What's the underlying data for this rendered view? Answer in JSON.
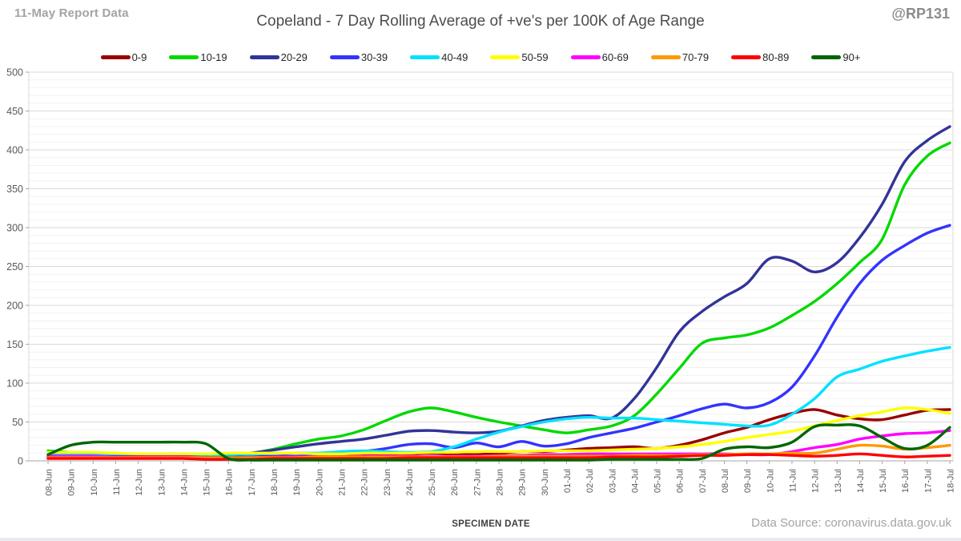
{
  "header": {
    "report_label": "11-May Report Data",
    "title": "Copeland - 7 Day Rolling Average of +ve's per 100K of Age Range",
    "handle": "@RP131"
  },
  "footer": {
    "xlabel": "SPECIMEN DATE",
    "source": "Data Source: coronavirus.data.gov.uk"
  },
  "colors": {
    "grid_major": "#d9d9d9",
    "grid_minor": "#f1f1f1",
    "axis": "#a6a6a6",
    "tick_label": "#595959"
  },
  "chart_data": {
    "type": "line",
    "title": "Copeland - 7 Day Rolling Average of +ve's per 100K of Age Range",
    "xlabel": "SPECIMEN DATE",
    "ylabel": "",
    "ylim": [
      0,
      500
    ],
    "y_major_step": 50,
    "y_minor_step": 10,
    "grid": true,
    "legend_position": "top",
    "line_style": "smooth",
    "categories": [
      "08-Jun",
      "09-Jun",
      "10-Jun",
      "11-Jun",
      "12-Jun",
      "13-Jun",
      "14-Jun",
      "15-Jun",
      "16-Jun",
      "17-Jun",
      "18-Jun",
      "19-Jun",
      "20-Jun",
      "21-Jun",
      "22-Jun",
      "23-Jun",
      "24-Jun",
      "25-Jun",
      "26-Jun",
      "27-Jun",
      "28-Jun",
      "29-Jun",
      "30-Jun",
      "01-Jul",
      "02-Jul",
      "03-Jul",
      "04-Jul",
      "05-Jul",
      "06-Jul",
      "07-Jul",
      "08-Jul",
      "09-Jul",
      "10-Jul",
      "11-Jul",
      "12-Jul",
      "13-Jul",
      "14-Jul",
      "15-Jul",
      "16-Jul",
      "17-Jul",
      "18-Jul"
    ],
    "series": [
      {
        "name": "0-9",
        "color": "#990000",
        "values": [
          4,
          4,
          4,
          4,
          4,
          5,
          5,
          5,
          5,
          5,
          6,
          6,
          6,
          7,
          8,
          8,
          9,
          10,
          9,
          8,
          10,
          12,
          12,
          14,
          16,
          17,
          18,
          16,
          20,
          27,
          36,
          43,
          53,
          61,
          66,
          59,
          54,
          53,
          59,
          65,
          66
        ]
      },
      {
        "name": "10-19",
        "color": "#00d900",
        "values": [
          13,
          11,
          10,
          9,
          8,
          8,
          8,
          7,
          7,
          10,
          15,
          22,
          28,
          32,
          40,
          52,
          63,
          68,
          63,
          56,
          50,
          45,
          40,
          36,
          40,
          45,
          58,
          86,
          119,
          151,
          158,
          162,
          171,
          187,
          205,
          228,
          255,
          285,
          355,
          392,
          409
        ]
      },
      {
        "name": "20-29",
        "color": "#333399",
        "values": [
          5,
          5,
          5,
          6,
          6,
          6,
          7,
          7,
          8,
          10,
          14,
          18,
          22,
          25,
          28,
          33,
          38,
          39,
          37,
          36,
          38,
          45,
          52,
          56,
          58,
          55,
          80,
          120,
          166,
          192,
          211,
          228,
          260,
          257,
          243,
          255,
          287,
          330,
          385,
          412,
          430
        ]
      },
      {
        "name": "30-39",
        "color": "#3333ff",
        "values": [
          5,
          5,
          4,
          4,
          4,
          4,
          5,
          5,
          5,
          5,
          5,
          6,
          7,
          8,
          12,
          16,
          21,
          22,
          17,
          23,
          18,
          25,
          19,
          22,
          30,
          36,
          42,
          50,
          58,
          67,
          73,
          68,
          75,
          95,
          135,
          185,
          228,
          258,
          277,
          293,
          303
        ]
      },
      {
        "name": "40-49",
        "color": "#00e1ff",
        "values": [
          8,
          9,
          9,
          9,
          9,
          9,
          9,
          8,
          8,
          9,
          9,
          10,
          10,
          12,
          13,
          12,
          11,
          12,
          18,
          28,
          37,
          44,
          50,
          54,
          56,
          55,
          55,
          53,
          51,
          49,
          47,
          45,
          46,
          60,
          80,
          108,
          118,
          128,
          135,
          141,
          146
        ]
      },
      {
        "name": "50-59",
        "color": "#ffff00",
        "values": [
          11,
          11,
          11,
          10,
          9,
          9,
          9,
          9,
          10,
          10,
          10,
          10,
          9,
          9,
          10,
          10,
          10,
          11,
          11,
          12,
          12,
          12,
          13,
          13,
          13,
          14,
          15,
          16,
          18,
          21,
          25,
          30,
          34,
          38,
          45,
          52,
          58,
          63,
          68,
          66,
          61
        ]
      },
      {
        "name": "60-69",
        "color": "#ff00ff",
        "values": [
          6,
          6,
          6,
          5,
          5,
          5,
          5,
          4,
          4,
          4,
          5,
          5,
          5,
          5,
          6,
          6,
          6,
          6,
          6,
          6,
          7,
          7,
          8,
          8,
          9,
          9,
          9,
          9,
          9,
          9,
          9,
          8,
          8,
          12,
          17,
          21,
          28,
          32,
          35,
          36,
          39
        ]
      },
      {
        "name": "70-79",
        "color": "#ff9900",
        "values": [
          4,
          4,
          4,
          4,
          4,
          4,
          4,
          4,
          4,
          4,
          4,
          4,
          5,
          5,
          5,
          5,
          5,
          5,
          5,
          5,
          6,
          6,
          6,
          6,
          6,
          6,
          7,
          7,
          7,
          8,
          8,
          9,
          9,
          10,
          10,
          15,
          20,
          19,
          15,
          17,
          20
        ]
      },
      {
        "name": "80-89",
        "color": "#ff0000",
        "values": [
          3,
          3,
          3,
          3,
          3,
          3,
          3,
          2,
          2,
          2,
          3,
          3,
          3,
          3,
          3,
          3,
          4,
          4,
          4,
          4,
          4,
          4,
          4,
          4,
          4,
          5,
          5,
          5,
          6,
          7,
          7,
          8,
          8,
          7,
          6,
          7,
          9,
          7,
          5,
          6,
          7
        ]
      },
      {
        "name": "90+",
        "color": "#006600",
        "values": [
          8,
          20,
          24,
          24,
          24,
          24,
          24,
          22,
          3,
          1,
          1,
          1,
          1,
          1,
          1,
          1,
          1,
          1,
          1,
          1,
          1,
          1,
          1,
          1,
          1,
          2,
          2,
          2,
          2,
          3,
          15,
          18,
          17,
          24,
          44,
          46,
          45,
          30,
          16,
          20,
          43
        ]
      }
    ]
  }
}
